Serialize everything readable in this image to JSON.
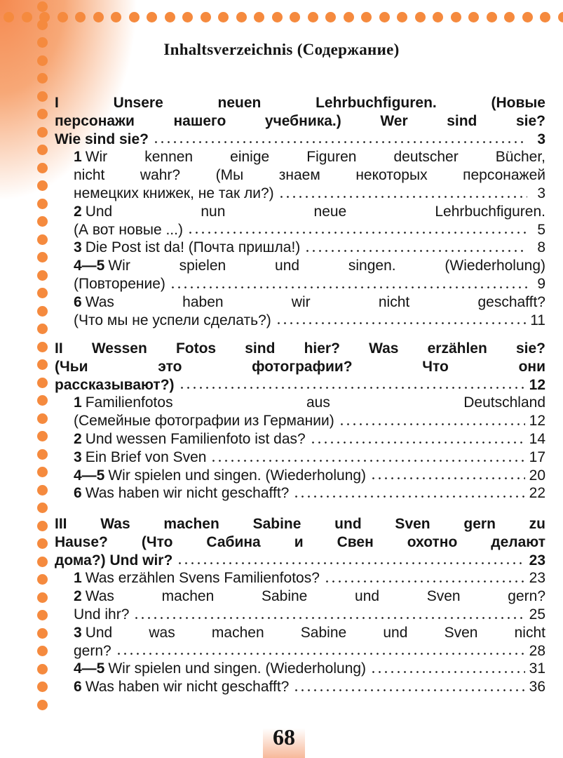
{
  "title": "Inhaltsverzeichnis (Содержание)",
  "sections": [
    {
      "heading_lines": [
        "I Unsere neuen Lehrbuchfiguren. (Новые",
        "персонажи нашего учебника.) Wer sind sie?",
        "Wie sind sie?"
      ],
      "page": "3",
      "items": [
        {
          "num": "1",
          "lines": [
            "Wir kennen einige Figuren deutscher Bücher,",
            "nicht wahr? (Мы знаем некоторых персонажей",
            "немецких книжек, не так ли?)"
          ],
          "page": "3"
        },
        {
          "num": "2",
          "lines": [
            "Und nun neue Lehrbuchfiguren.",
            "(А вот новые ...)"
          ],
          "page": "5"
        },
        {
          "num": "3",
          "lines": [
            "Die Post ist da! (Почта пришла!)"
          ],
          "page": "8"
        },
        {
          "num": "4—5",
          "lines": [
            "Wir spielen und singen. (Wiederholung)",
            "(Повторение)"
          ],
          "page": "9"
        },
        {
          "num": "6",
          "lines": [
            "Was haben wir nicht geschafft?",
            "(Что мы не успели сделать?)"
          ],
          "page": "11"
        }
      ]
    },
    {
      "heading_lines": [
        "II Wessen Fotos sind hier? Was erzählen sie?",
        "(Чьи это фотографии? Что они",
        "рассказывают?)"
      ],
      "page": "12",
      "items": [
        {
          "num": "1",
          "lines": [
            "Familienfotos aus Deutschland",
            "(Семейные фотографии из Германии)"
          ],
          "page": "12"
        },
        {
          "num": "2",
          "lines": [
            "Und wessen Familienfoto ist das?"
          ],
          "page": "14"
        },
        {
          "num": "3",
          "lines": [
            "Ein Brief von Sven"
          ],
          "page": "17"
        },
        {
          "num": "4—5",
          "lines": [
            "Wir spielen und singen. (Wiederholung)"
          ],
          "page": "20"
        },
        {
          "num": "6",
          "lines": [
            "Was haben wir nicht geschafft?"
          ],
          "page": "22"
        }
      ]
    },
    {
      "heading_lines": [
        "III Was machen Sabine und Sven gern zu",
        "Hause? (Что Сабина и Свен охотно делают",
        "дома?) Und wir?"
      ],
      "page": "23",
      "items": [
        {
          "num": "1",
          "lines": [
            "Was erzählen Svens Familienfotos?"
          ],
          "page": "23"
        },
        {
          "num": "2",
          "lines": [
            "Was machen Sabine und Sven gern?",
            "Und ihr?"
          ],
          "page": "25"
        },
        {
          "num": "3",
          "lines": [
            "Und was machen Sabine und Sven nicht",
            "gern?"
          ],
          "page": "28"
        },
        {
          "num": "4—5",
          "lines": [
            "Wir spielen und singen. (Wiederholung)"
          ],
          "page": "31"
        },
        {
          "num": "6",
          "lines": [
            "Was haben wir nicht geschafft?"
          ],
          "page": "36"
        }
      ]
    }
  ],
  "page_number": "68",
  "accent_color": "#f58a3e"
}
